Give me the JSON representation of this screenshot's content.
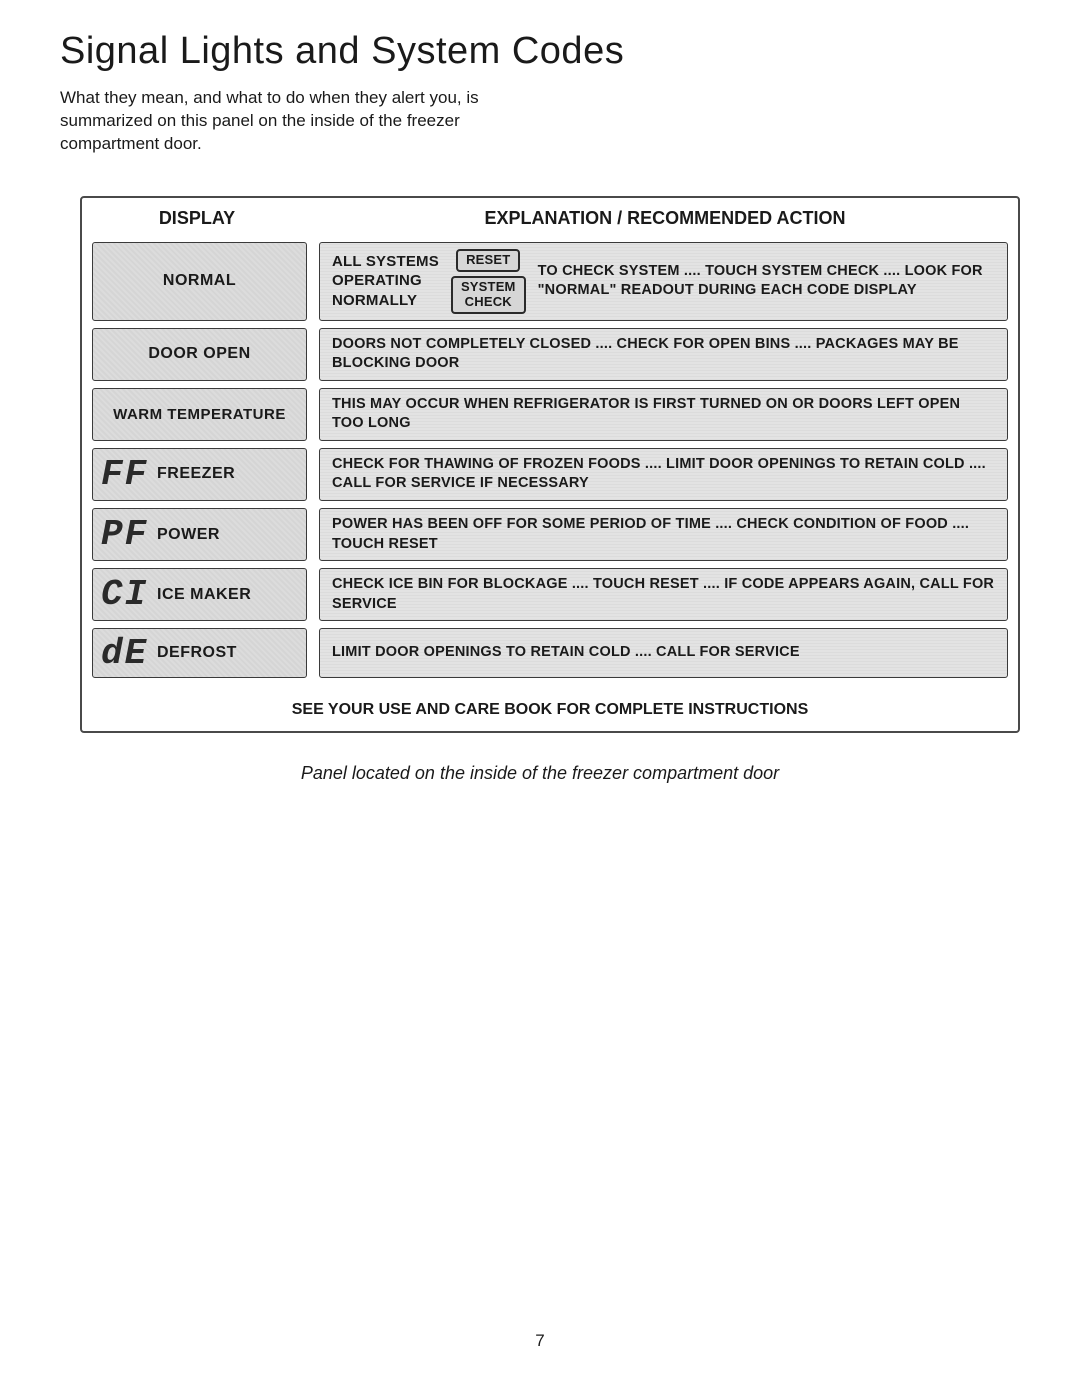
{
  "title": "Signal Lights and System Codes",
  "intro": "What they mean, and what to do when they alert you, is summarized on this panel on the inside of the freezer compartment door.",
  "headers": {
    "display": "DISPLAY",
    "explanation": "EXPLANATION / RECOMMENDED ACTION"
  },
  "normal_row": {
    "display_label": "NORMAL",
    "left_text": "ALL SYSTEMS\nOPERATING\nNORMALLY",
    "reset_btn": "RESET",
    "system_btn": "SYSTEM\nCHECK",
    "right_text": "TO CHECK SYSTEM .... TOUCH SYSTEM CHECK .... LOOK FOR \"NORMAL\" READOUT DURING EACH CODE DISPLAY"
  },
  "rows": [
    {
      "code": "",
      "label": "DOOR OPEN",
      "expl": "DOORS NOT COMPLETELY CLOSED .... CHECK FOR OPEN BINS .... PACKAGES MAY BE BLOCKING DOOR"
    },
    {
      "code": "",
      "label": "WARM TEMPERATURE",
      "expl": "THIS MAY OCCUR WHEN REFRIGERATOR IS FIRST TURNED ON OR DOORS LEFT OPEN TOO LONG"
    },
    {
      "code": "FF",
      "label": "FREEZER",
      "expl": "CHECK FOR THAWING OF FROZEN FOODS .... LIMIT DOOR OPENINGS TO RETAIN COLD .... CALL FOR SERVICE IF NECESSARY"
    },
    {
      "code": "PF",
      "label": "POWER",
      "expl": "POWER HAS BEEN OFF FOR SOME PERIOD OF TIME .... CHECK CONDITION OF FOOD .... TOUCH RESET"
    },
    {
      "code": "CI",
      "label": "ICE MAKER",
      "expl": "CHECK ICE BIN FOR BLOCKAGE .... TOUCH RESET .... IF CODE APPEARS AGAIN, CALL FOR SERVICE"
    },
    {
      "code": "dE",
      "label": "DEFROST",
      "expl": "LIMIT DOOR OPENINGS TO RETAIN COLD .... CALL FOR SERVICE"
    }
  ],
  "footer_note": "SEE YOUR USE AND CARE BOOK FOR COMPLETE INSTRUCTIONS",
  "caption": "Panel located on the inside of the freezer compartment door",
  "page_number": "7",
  "colors": {
    "box_bg": "#dcdcdc",
    "box_border": "#3a3a3a",
    "text": "#1a1a1a"
  }
}
